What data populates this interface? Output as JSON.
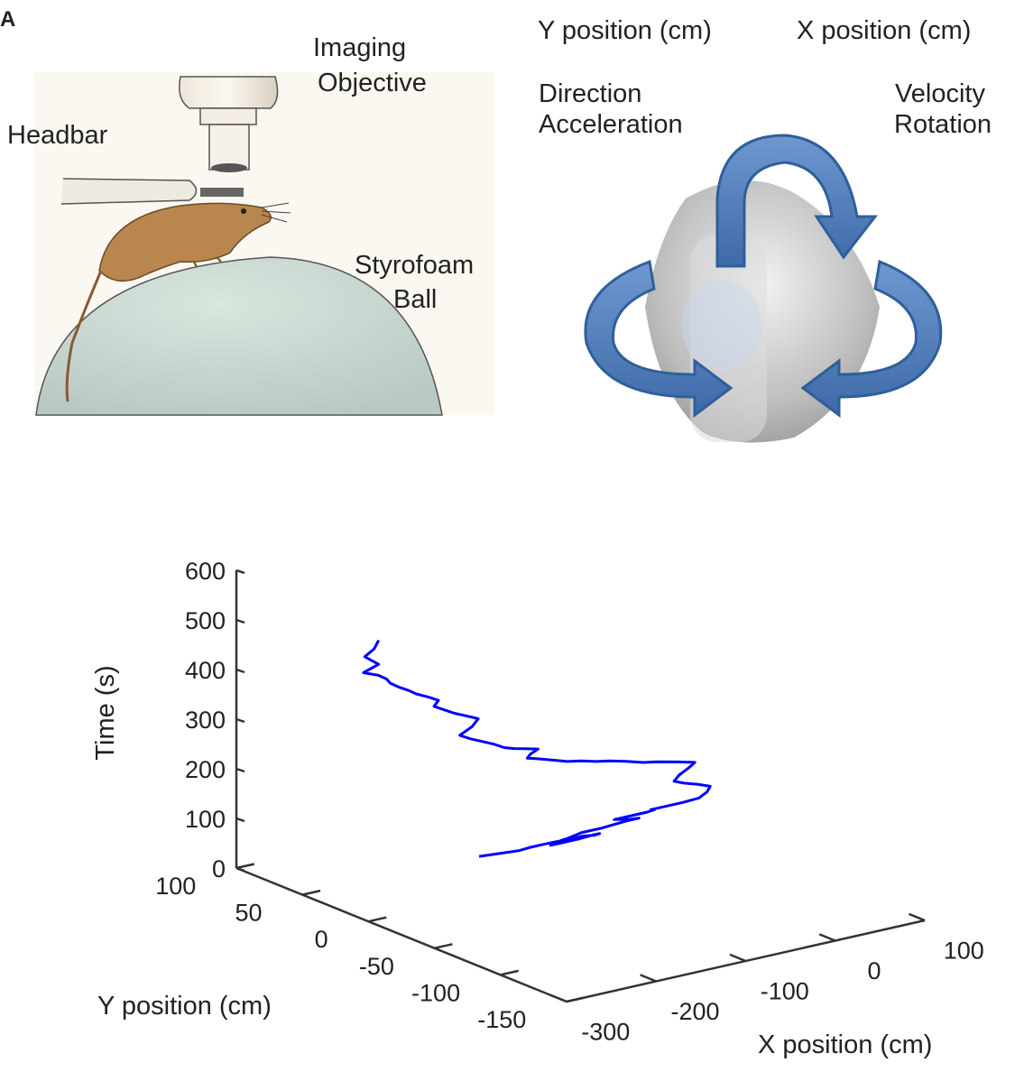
{
  "panel_a": {
    "letter": "A",
    "labels": {
      "headbar": "Headbar",
      "imaging_objective": [
        "Imaging",
        "Objective"
      ],
      "styrofoam_ball": [
        "Styrofoam",
        "Ball"
      ]
    }
  },
  "panel_b": {
    "labels": {
      "y_position": "Y position (cm)",
      "x_position": "X position (cm)",
      "direction": "Direction",
      "acceleration": "Acceleration",
      "velocity": "Velocity",
      "rotation": "Rotation"
    },
    "colors": {
      "arrow": "#4f7fbf",
      "arrow_edge": "#2f5f9a",
      "ball": "#c8c8c8"
    }
  },
  "chart_data": {
    "type": "line3d",
    "xlabel": "X position (cm)",
    "ylabel": "Y position (cm)",
    "zlabel": "Time (s)",
    "xlim": [
      -300,
      100
    ],
    "ylim": [
      -150,
      100
    ],
    "zlim": [
      0,
      600
    ],
    "xticks": [
      -300,
      -200,
      -100,
      0,
      100
    ],
    "yticks": [
      -150,
      -100,
      -50,
      0,
      50,
      100
    ],
    "zticks": [
      0,
      100,
      200,
      300,
      400,
      500,
      600
    ],
    "line_color": "#0000ff",
    "series": [
      {
        "x": [
          -110,
          -95,
          -80,
          -72,
          -60,
          -50,
          -45,
          -58,
          -70,
          -62,
          -48,
          -35,
          -30,
          -40,
          -55,
          -70,
          -82,
          -90,
          -84,
          -70,
          -52,
          -40,
          -28,
          -20,
          -25,
          -38,
          -50,
          -58,
          -45,
          -30,
          -25,
          -32,
          -20,
          -5,
          10,
          22,
          30,
          20,
          8,
          0,
          10,
          25,
          35,
          20,
          0,
          -15,
          -30,
          -45,
          -60,
          -75,
          -90,
          -100,
          -110,
          -120,
          -130,
          -125,
          -115,
          -128,
          -140,
          -150,
          -160,
          -172,
          -185,
          -195,
          -180,
          -170,
          -182,
          -195,
          -205,
          -215,
          -210,
          -220,
          -232,
          -240,
          -250,
          -258,
          -262,
          -270,
          -285,
          -268,
          -275,
          -282,
          -270,
          -265
        ],
        "y": [
          45,
          40,
          35,
          33,
          30,
          28,
          25,
          22,
          18,
          15,
          12,
          10,
          8,
          5,
          5,
          2,
          0,
          -3,
          -5,
          -5,
          -8,
          -10,
          -12,
          -15,
          -18,
          -20,
          -20,
          -22,
          -25,
          -28,
          -30,
          -32,
          -35,
          -38,
          -40,
          -38,
          -35,
          -32,
          -30,
          -28,
          -25,
          -22,
          -20,
          -18,
          -15,
          -15,
          -12,
          -10,
          -10,
          -8,
          -8,
          -7,
          -6,
          -5,
          -5,
          -4,
          -3,
          -2,
          -2,
          -1,
          0,
          0,
          1,
          2,
          3,
          5,
          5,
          6,
          7,
          8,
          8,
          9,
          10,
          10,
          11,
          12,
          12,
          13,
          14,
          14,
          15,
          15,
          16,
          16
        ],
        "z": [
          5,
          10,
          15,
          20,
          25,
          28,
          32,
          36,
          40,
          45,
          50,
          55,
          58,
          62,
          66,
          70,
          75,
          80,
          85,
          90,
          95,
          100,
          105,
          110,
          115,
          120,
          125,
          130,
          135,
          140,
          145,
          150,
          155,
          160,
          165,
          170,
          175,
          180,
          185,
          190,
          195,
          200,
          205,
          210,
          215,
          220,
          225,
          230,
          235,
          240,
          245,
          250,
          255,
          260,
          265,
          270,
          275,
          280,
          285,
          290,
          300,
          310,
          320,
          330,
          340,
          350,
          360,
          370,
          380,
          390,
          400,
          410,
          420,
          430,
          440,
          450,
          460,
          470,
          480,
          490,
          500,
          510,
          520,
          535
        ]
      }
    ]
  }
}
